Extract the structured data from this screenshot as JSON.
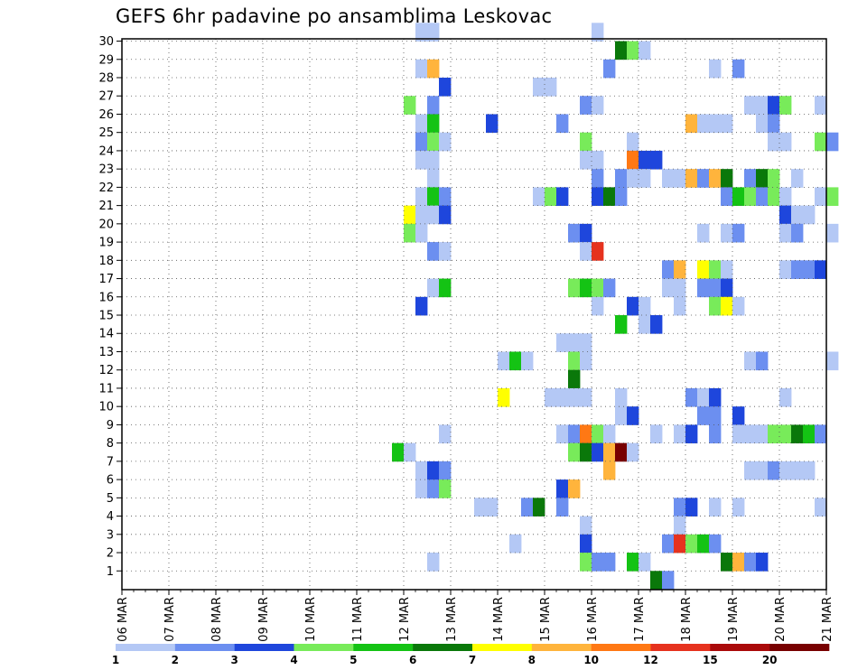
{
  "chart_data": {
    "type": "heatmap",
    "title": "GEFS 6hr padavine po ansamblima Leskovac",
    "xlabel": "",
    "ylabel": "",
    "x_tick_labels": [
      "06 MAR",
      "07 MAR",
      "08 MAR",
      "09 MAR",
      "10 MAR",
      "11 MAR",
      "12 MAR",
      "13 MAR",
      "14 MAR",
      "15 MAR",
      "16 MAR",
      "17 MAR",
      "18 MAR",
      "19 MAR",
      "20 MAR",
      "21 MAR"
    ],
    "y_tick_labels": [
      "1",
      "2",
      "3",
      "4",
      "5",
      "6",
      "7",
      "8",
      "9",
      "10",
      "11",
      "12",
      "13",
      "14",
      "15",
      "16",
      "17",
      "18",
      "19",
      "20",
      "21",
      "22",
      "23",
      "24",
      "25",
      "26",
      "27",
      "28",
      "29",
      "30"
    ],
    "time_steps_per_day": 4,
    "x_range_days": [
      "06 MAR",
      "21 MAR"
    ],
    "y_range": [
      0,
      30
    ],
    "grid": true,
    "legend": {
      "placement": "bottom",
      "labels": [
        "1",
        "2",
        "3",
        "4",
        "5",
        "6",
        "7",
        "8",
        "10",
        "12",
        "15",
        "20"
      ],
      "colors": [
        "#b4c8f5",
        "#6c8ff0",
        "#1e46dc",
        "#78eb5a",
        "#14c314",
        "#0a780a",
        "#ffff00",
        "#ffb43c",
        "#ff7814",
        "#e6321e",
        "#aa0a0a",
        "#780000"
      ]
    },
    "cells": [
      {
        "member": 30,
        "step": 25,
        "class": 1
      },
      {
        "member": 30,
        "step": 26,
        "class": 1
      },
      {
        "member": 30,
        "step": 40,
        "class": 1
      },
      {
        "member": 29,
        "step": 42,
        "class": 6
      },
      {
        "member": 29,
        "step": 43,
        "class": 4
      },
      {
        "member": 29,
        "step": 44,
        "class": 1
      },
      {
        "member": 28,
        "step": 25,
        "class": 1
      },
      {
        "member": 28,
        "step": 26,
        "class": 8
      },
      {
        "member": 28,
        "step": 41,
        "class": 2
      },
      {
        "member": 28,
        "step": 50,
        "class": 1
      },
      {
        "member": 28,
        "step": 52,
        "class": 2
      },
      {
        "member": 27,
        "step": 27,
        "class": 3
      },
      {
        "member": 27,
        "step": 35,
        "class": 1
      },
      {
        "member": 27,
        "step": 36,
        "class": 1
      },
      {
        "member": 26,
        "step": 24,
        "class": 4
      },
      {
        "member": 26,
        "step": 26,
        "class": 2
      },
      {
        "member": 26,
        "step": 39,
        "class": 2
      },
      {
        "member": 26,
        "step": 40,
        "class": 1
      },
      {
        "member": 26,
        "step": 53,
        "class": 1
      },
      {
        "member": 26,
        "step": 54,
        "class": 1
      },
      {
        "member": 26,
        "step": 55,
        "class": 3
      },
      {
        "member": 26,
        "step": 56,
        "class": 4
      },
      {
        "member": 26,
        "step": 59,
        "class": 1
      },
      {
        "member": 25,
        "step": 25,
        "class": 1
      },
      {
        "member": 25,
        "step": 26,
        "class": 5
      },
      {
        "member": 25,
        "step": 31,
        "class": 3
      },
      {
        "member": 25,
        "step": 37,
        "class": 2
      },
      {
        "member": 25,
        "step": 48,
        "class": 8
      },
      {
        "member": 25,
        "step": 49,
        "class": 1
      },
      {
        "member": 25,
        "step": 50,
        "class": 1
      },
      {
        "member": 25,
        "step": 51,
        "class": 1
      },
      {
        "member": 25,
        "step": 54,
        "class": 1
      },
      {
        "member": 25,
        "step": 55,
        "class": 2
      },
      {
        "member": 24,
        "step": 25,
        "class": 2
      },
      {
        "member": 24,
        "step": 26,
        "class": 4
      },
      {
        "member": 24,
        "step": 27,
        "class": 1
      },
      {
        "member": 24,
        "step": 39,
        "class": 4
      },
      {
        "member": 24,
        "step": 43,
        "class": 1
      },
      {
        "member": 24,
        "step": 55,
        "class": 1
      },
      {
        "member": 24,
        "step": 56,
        "class": 1
      },
      {
        "member": 24,
        "step": 59,
        "class": 4
      },
      {
        "member": 24,
        "step": 60,
        "class": 2
      },
      {
        "member": 23,
        "step": 25,
        "class": 1
      },
      {
        "member": 23,
        "step": 26,
        "class": 1
      },
      {
        "member": 23,
        "step": 39,
        "class": 1
      },
      {
        "member": 23,
        "step": 40,
        "class": 1
      },
      {
        "member": 23,
        "step": 43,
        "class": 9
      },
      {
        "member": 23,
        "step": 44,
        "class": 3
      },
      {
        "member": 23,
        "step": 45,
        "class": 3
      },
      {
        "member": 22,
        "step": 26,
        "class": 1
      },
      {
        "member": 22,
        "step": 40,
        "class": 2
      },
      {
        "member": 22,
        "step": 42,
        "class": 2
      },
      {
        "member": 22,
        "step": 43,
        "class": 1
      },
      {
        "member": 22,
        "step": 44,
        "class": 1
      },
      {
        "member": 22,
        "step": 46,
        "class": 1
      },
      {
        "member": 22,
        "step": 47,
        "class": 1
      },
      {
        "member": 22,
        "step": 48,
        "class": 8
      },
      {
        "member": 22,
        "step": 49,
        "class": 2
      },
      {
        "member": 22,
        "step": 50,
        "class": 8
      },
      {
        "member": 22,
        "step": 51,
        "class": 6
      },
      {
        "member": 22,
        "step": 53,
        "class": 2
      },
      {
        "member": 22,
        "step": 54,
        "class": 6
      },
      {
        "member": 22,
        "step": 55,
        "class": 4
      },
      {
        "member": 22,
        "step": 57,
        "class": 1
      },
      {
        "member": 21,
        "step": 25,
        "class": 1
      },
      {
        "member": 21,
        "step": 26,
        "class": 5
      },
      {
        "member": 21,
        "step": 27,
        "class": 2
      },
      {
        "member": 21,
        "step": 35,
        "class": 1
      },
      {
        "member": 21,
        "step": 36,
        "class": 4
      },
      {
        "member": 21,
        "step": 37,
        "class": 3
      },
      {
        "member": 21,
        "step": 40,
        "class": 3
      },
      {
        "member": 21,
        "step": 41,
        "class": 6
      },
      {
        "member": 21,
        "step": 42,
        "class": 2
      },
      {
        "member": 21,
        "step": 51,
        "class": 2
      },
      {
        "member": 21,
        "step": 52,
        "class": 5
      },
      {
        "member": 21,
        "step": 53,
        "class": 4
      },
      {
        "member": 21,
        "step": 54,
        "class": 2
      },
      {
        "member": 21,
        "step": 55,
        "class": 4
      },
      {
        "member": 21,
        "step": 56,
        "class": 1
      },
      {
        "member": 21,
        "step": 59,
        "class": 1
      },
      {
        "member": 21,
        "step": 60,
        "class": 4
      },
      {
        "member": 20,
        "step": 24,
        "class": 7
      },
      {
        "member": 20,
        "step": 25,
        "class": 1
      },
      {
        "member": 20,
        "step": 26,
        "class": 1
      },
      {
        "member": 20,
        "step": 27,
        "class": 3
      },
      {
        "member": 20,
        "step": 56,
        "class": 3
      },
      {
        "member": 20,
        "step": 57,
        "class": 1
      },
      {
        "member": 20,
        "step": 58,
        "class": 1
      },
      {
        "member": 19,
        "step": 24,
        "class": 4
      },
      {
        "member": 19,
        "step": 25,
        "class": 1
      },
      {
        "member": 19,
        "step": 38,
        "class": 2
      },
      {
        "member": 19,
        "step": 39,
        "class": 3
      },
      {
        "member": 19,
        "step": 49,
        "class": 1
      },
      {
        "member": 19,
        "step": 51,
        "class": 1
      },
      {
        "member": 19,
        "step": 52,
        "class": 2
      },
      {
        "member": 19,
        "step": 56,
        "class": 1
      },
      {
        "member": 19,
        "step": 57,
        "class": 2
      },
      {
        "member": 19,
        "step": 60,
        "class": 1
      },
      {
        "member": 18,
        "step": 26,
        "class": 2
      },
      {
        "member": 18,
        "step": 27,
        "class": 1
      },
      {
        "member": 18,
        "step": 39,
        "class": 1
      },
      {
        "member": 18,
        "step": 40,
        "class": 10
      },
      {
        "member": 17,
        "step": 46,
        "class": 2
      },
      {
        "member": 17,
        "step": 47,
        "class": 8
      },
      {
        "member": 17,
        "step": 49,
        "class": 7
      },
      {
        "member": 17,
        "step": 50,
        "class": 4
      },
      {
        "member": 17,
        "step": 51,
        "class": 1
      },
      {
        "member": 17,
        "step": 56,
        "class": 1
      },
      {
        "member": 17,
        "step": 57,
        "class": 2
      },
      {
        "member": 17,
        "step": 58,
        "class": 2
      },
      {
        "member": 17,
        "step": 59,
        "class": 3
      },
      {
        "member": 16,
        "step": 26,
        "class": 1
      },
      {
        "member": 16,
        "step": 27,
        "class": 5
      },
      {
        "member": 16,
        "step": 38,
        "class": 4
      },
      {
        "member": 16,
        "step": 39,
        "class": 5
      },
      {
        "member": 16,
        "step": 40,
        "class": 4
      },
      {
        "member": 16,
        "step": 41,
        "class": 2
      },
      {
        "member": 16,
        "step": 46,
        "class": 1
      },
      {
        "member": 16,
        "step": 47,
        "class": 1
      },
      {
        "member": 16,
        "step": 49,
        "class": 2
      },
      {
        "member": 16,
        "step": 50,
        "class": 2
      },
      {
        "member": 16,
        "step": 51,
        "class": 3
      },
      {
        "member": 15,
        "step": 25,
        "class": 3
      },
      {
        "member": 15,
        "step": 40,
        "class": 1
      },
      {
        "member": 15,
        "step": 43,
        "class": 3
      },
      {
        "member": 15,
        "step": 44,
        "class": 1
      },
      {
        "member": 15,
        "step": 47,
        "class": 1
      },
      {
        "member": 15,
        "step": 50,
        "class": 4
      },
      {
        "member": 15,
        "step": 51,
        "class": 7
      },
      {
        "member": 15,
        "step": 52,
        "class": 1
      },
      {
        "member": 14,
        "step": 42,
        "class": 5
      },
      {
        "member": 14,
        "step": 44,
        "class": 1
      },
      {
        "member": 14,
        "step": 45,
        "class": 3
      },
      {
        "member": 13,
        "step": 37,
        "class": 1
      },
      {
        "member": 13,
        "step": 38,
        "class": 1
      },
      {
        "member": 13,
        "step": 39,
        "class": 1
      },
      {
        "member": 12,
        "step": 32,
        "class": 1
      },
      {
        "member": 12,
        "step": 33,
        "class": 5
      },
      {
        "member": 12,
        "step": 34,
        "class": 1
      },
      {
        "member": 12,
        "step": 38,
        "class": 4
      },
      {
        "member": 12,
        "step": 39,
        "class": 1
      },
      {
        "member": 12,
        "step": 53,
        "class": 1
      },
      {
        "member": 12,
        "step": 54,
        "class": 2
      },
      {
        "member": 12,
        "step": 60,
        "class": 1
      },
      {
        "member": 11,
        "step": 38,
        "class": 6
      },
      {
        "member": 10,
        "step": 32,
        "class": 7
      },
      {
        "member": 10,
        "step": 36,
        "class": 1
      },
      {
        "member": 10,
        "step": 37,
        "class": 1
      },
      {
        "member": 10,
        "step": 38,
        "class": 1
      },
      {
        "member": 10,
        "step": 39,
        "class": 1
      },
      {
        "member": 10,
        "step": 42,
        "class": 1
      },
      {
        "member": 10,
        "step": 48,
        "class": 2
      },
      {
        "member": 10,
        "step": 49,
        "class": 1
      },
      {
        "member": 10,
        "step": 50,
        "class": 3
      },
      {
        "member": 10,
        "step": 56,
        "class": 1
      },
      {
        "member": 9,
        "step": 42,
        "class": 1
      },
      {
        "member": 9,
        "step": 43,
        "class": 3
      },
      {
        "member": 9,
        "step": 49,
        "class": 2
      },
      {
        "member": 9,
        "step": 50,
        "class": 2
      },
      {
        "member": 9,
        "step": 52,
        "class": 3
      },
      {
        "member": 8,
        "step": 27,
        "class": 1
      },
      {
        "member": 8,
        "step": 37,
        "class": 1
      },
      {
        "member": 8,
        "step": 38,
        "class": 2
      },
      {
        "member": 8,
        "step": 39,
        "class": 9
      },
      {
        "member": 8,
        "step": 40,
        "class": 4
      },
      {
        "member": 8,
        "step": 41,
        "class": 1
      },
      {
        "member": 8,
        "step": 45,
        "class": 1
      },
      {
        "member": 8,
        "step": 47,
        "class": 1
      },
      {
        "member": 8,
        "step": 48,
        "class": 3
      },
      {
        "member": 8,
        "step": 50,
        "class": 2
      },
      {
        "member": 8,
        "step": 52,
        "class": 1
      },
      {
        "member": 8,
        "step": 53,
        "class": 1
      },
      {
        "member": 8,
        "step": 54,
        "class": 1
      },
      {
        "member": 8,
        "step": 55,
        "class": 4
      },
      {
        "member": 8,
        "step": 56,
        "class": 4
      },
      {
        "member": 8,
        "step": 57,
        "class": 6
      },
      {
        "member": 8,
        "step": 58,
        "class": 5
      },
      {
        "member": 8,
        "step": 59,
        "class": 2
      },
      {
        "member": 7,
        "step": 23,
        "class": 5
      },
      {
        "member": 7,
        "step": 24,
        "class": 1
      },
      {
        "member": 7,
        "step": 38,
        "class": 4
      },
      {
        "member": 7,
        "step": 39,
        "class": 6
      },
      {
        "member": 7,
        "step": 40,
        "class": 3
      },
      {
        "member": 7,
        "step": 41,
        "class": 8
      },
      {
        "member": 7,
        "step": 42,
        "class": 12
      },
      {
        "member": 7,
        "step": 43,
        "class": 1
      },
      {
        "member": 6,
        "step": 25,
        "class": 1
      },
      {
        "member": 6,
        "step": 26,
        "class": 3
      },
      {
        "member": 6,
        "step": 27,
        "class": 2
      },
      {
        "member": 6,
        "step": 41,
        "class": 8
      },
      {
        "member": 6,
        "step": 53,
        "class": 1
      },
      {
        "member": 6,
        "step": 54,
        "class": 1
      },
      {
        "member": 6,
        "step": 55,
        "class": 2
      },
      {
        "member": 6,
        "step": 56,
        "class": 1
      },
      {
        "member": 6,
        "step": 57,
        "class": 1
      },
      {
        "member": 6,
        "step": 58,
        "class": 1
      },
      {
        "member": 5,
        "step": 25,
        "class": 1
      },
      {
        "member": 5,
        "step": 26,
        "class": 2
      },
      {
        "member": 5,
        "step": 27,
        "class": 4
      },
      {
        "member": 5,
        "step": 37,
        "class": 3
      },
      {
        "member": 5,
        "step": 38,
        "class": 8
      },
      {
        "member": 4,
        "step": 30,
        "class": 1
      },
      {
        "member": 4,
        "step": 31,
        "class": 1
      },
      {
        "member": 4,
        "step": 34,
        "class": 2
      },
      {
        "member": 4,
        "step": 35,
        "class": 6
      },
      {
        "member": 4,
        "step": 37,
        "class": 2
      },
      {
        "member": 4,
        "step": 47,
        "class": 2
      },
      {
        "member": 4,
        "step": 48,
        "class": 3
      },
      {
        "member": 4,
        "step": 50,
        "class": 1
      },
      {
        "member": 4,
        "step": 52,
        "class": 1
      },
      {
        "member": 4,
        "step": 59,
        "class": 1
      },
      {
        "member": 3,
        "step": 39,
        "class": 1
      },
      {
        "member": 3,
        "step": 47,
        "class": 1
      },
      {
        "member": 2,
        "step": 33,
        "class": 1
      },
      {
        "member": 2,
        "step": 39,
        "class": 3
      },
      {
        "member": 2,
        "step": 46,
        "class": 2
      },
      {
        "member": 2,
        "step": 47,
        "class": 10
      },
      {
        "member": 2,
        "step": 48,
        "class": 4
      },
      {
        "member": 2,
        "step": 49,
        "class": 5
      },
      {
        "member": 2,
        "step": 50,
        "class": 2
      },
      {
        "member": 1,
        "step": 26,
        "class": 1
      },
      {
        "member": 1,
        "step": 39,
        "class": 4
      },
      {
        "member": 1,
        "step": 40,
        "class": 2
      },
      {
        "member": 1,
        "step": 41,
        "class": 2
      },
      {
        "member": 1,
        "step": 43,
        "class": 5
      },
      {
        "member": 1,
        "step": 44,
        "class": 1
      },
      {
        "member": 1,
        "step": 51,
        "class": 6
      },
      {
        "member": 1,
        "step": 52,
        "class": 8
      },
      {
        "member": 1,
        "step": 53,
        "class": 2
      },
      {
        "member": 1,
        "step": 54,
        "class": 3
      },
      {
        "member": 0,
        "step": 45,
        "class": 6
      },
      {
        "member": 0,
        "step": 46,
        "class": 2
      }
    ]
  }
}
